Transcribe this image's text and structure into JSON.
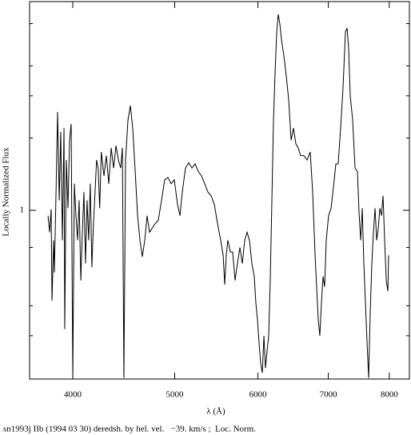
{
  "chart_data": {
    "type": "line",
    "xlabel": "λ (Å)",
    "ylabel": "Locally Normalized Flux",
    "caption": "sn1993j IIb (1994 03 30) deredsh. by hel. vel.   −39. km/s ;  Loc. Norm.",
    "xscale": "log",
    "yscale": "log",
    "color": "#000000",
    "xlim": [
      3639,
      8360
    ],
    "ylim": [
      0.198,
      7.41
    ],
    "xticks": [
      4000,
      5000,
      6000,
      7000,
      8000
    ],
    "yticks": [
      1
    ],
    "yminorticks": [
      0.3,
      0.4,
      0.7,
      2,
      3,
      4,
      6
    ],
    "x": [
      3789,
      3802,
      3815,
      3822,
      3836,
      3842,
      3856,
      3869,
      3883,
      3896,
      3910,
      3924,
      3930,
      3944,
      3958,
      3972,
      3986,
      4000,
      4014,
      4028,
      4042,
      4056,
      4071,
      4085,
      4099,
      4113,
      4127,
      4142,
      4156,
      4171,
      4185,
      4200,
      4214,
      4229,
      4243,
      4258,
      4283,
      4305,
      4328,
      4351,
      4374,
      4397,
      4420,
      4443,
      4459,
      4474,
      4490,
      4514,
      4538,
      4561,
      4586,
      4610,
      4634,
      4658,
      4683,
      4707,
      4732,
      4757,
      4791,
      4824,
      4858,
      4892,
      4927,
      4961,
      4996,
      5031,
      5058,
      5084,
      5120,
      5156,
      5192,
      5229,
      5266,
      5303,
      5340,
      5378,
      5415,
      5453,
      5492,
      5530,
      5560,
      5579,
      5598,
      5618,
      5648,
      5677,
      5707,
      5737,
      5768,
      5798,
      5829,
      5859,
      5890,
      5921,
      5952,
      5973,
      5994,
      6015,
      6036,
      6058,
      6079,
      6100,
      6122,
      6143,
      6164,
      6186,
      6208,
      6230,
      6252,
      6273,
      6295,
      6318,
      6351,
      6384,
      6418,
      6452,
      6486,
      6520,
      6554,
      6588,
      6635,
      6681,
      6728,
      6764,
      6800,
      6823,
      6847,
      6871,
      6895,
      6920,
      6944,
      6968,
      7004,
      7042,
      7078,
      7116,
      7153,
      7191,
      7229,
      7267,
      7293,
      7318,
      7344,
      7383,
      7422,
      7461,
      7487,
      7514,
      7540,
      7566,
      7593,
      7620,
      7646,
      7673,
      7700,
      7727,
      7754,
      7782,
      7809,
      7836,
      7864,
      7891,
      7919,
      7947,
      7975,
      7988
    ],
    "values": [
      0.95,
      0.81,
      1.01,
      0.42,
      0.75,
      0.55,
      1.19,
      2.57,
      1.1,
      2.12,
      0.75,
      2.2,
      0.32,
      1.62,
      1.02,
      1.96,
      2.29,
      0.2,
      1.29,
      0.95,
      0.75,
      1.1,
      0.51,
      0.81,
      1.19,
      0.6,
      1.1,
      0.75,
      1.29,
      0.58,
      0.88,
      1.19,
      1.62,
      1.5,
      1.02,
      1.75,
      1.39,
      1.69,
      1.29,
      1.82,
      1.5,
      1.86,
      1.62,
      1.5,
      1.82,
      0.2,
      1.62,
      2.38,
      2.73,
      2.2,
      1.45,
      0.95,
      0.75,
      0.64,
      0.75,
      0.95,
      0.81,
      0.84,
      0.88,
      0.91,
      1.1,
      1.34,
      1.37,
      1.29,
      1.34,
      1.06,
      0.95,
      1.19,
      1.5,
      1.58,
      1.5,
      1.56,
      1.45,
      1.39,
      1.29,
      1.19,
      1.15,
      1.06,
      0.88,
      0.75,
      0.65,
      0.49,
      0.65,
      0.75,
      0.67,
      0.67,
      0.51,
      0.6,
      0.7,
      0.6,
      0.75,
      0.81,
      0.75,
      0.6,
      0.53,
      0.41,
      0.35,
      0.28,
      0.23,
      0.21,
      0.3,
      0.22,
      0.26,
      0.3,
      0.51,
      1.1,
      2.38,
      3.77,
      5.54,
      6.55,
      5.98,
      5.13,
      4.4,
      3.63,
      2.88,
      1.96,
      2.2,
      1.89,
      1.82,
      1.69,
      1.69,
      1.62,
      1.75,
      1.19,
      0.65,
      0.48,
      0.35,
      0.3,
      0.41,
      0.53,
      0.48,
      0.75,
      0.95,
      1.02,
      1.24,
      1.56,
      1.56,
      2.2,
      3.24,
      5.54,
      5.75,
      4.75,
      3.0,
      2.38,
      1.5,
      1.45,
      0.98,
      0.75,
      1.02,
      0.6,
      0.41,
      0.28,
      0.2,
      0.38,
      0.6,
      0.81,
      1.02,
      0.75,
      0.84,
      1.02,
      0.95,
      1.15,
      0.75,
      0.51,
      0.46,
      0.65
    ]
  }
}
